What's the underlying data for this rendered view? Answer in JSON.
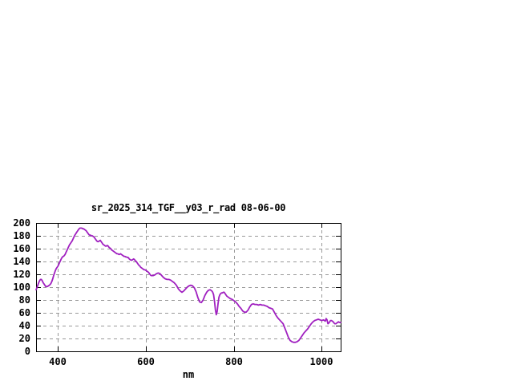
{
  "window": {
    "background": "#ffffff"
  },
  "chart_data": {
    "type": "line",
    "title": "sr_2025_314_TGF__y03_r_rad 08-06-00",
    "xlabel": "nm",
    "ylabel": "",
    "xlim": [
      350,
      1043
    ],
    "ylim": [
      0,
      200
    ],
    "xticks": [
      400,
      600,
      800,
      1000
    ],
    "yticks": [
      0,
      20,
      40,
      60,
      80,
      100,
      120,
      140,
      160,
      180,
      200
    ],
    "grid": true,
    "legend_position": "none",
    "colors": {
      "line": "#a020c0",
      "grid": "#999999",
      "axis": "#000000",
      "text": "#000000",
      "background": "#ffffff"
    },
    "series": [
      {
        "name": "sr_2025_314_TGF__y03_r_rad",
        "color": "#a020c0",
        "points": [
          [
            350,
            96
          ],
          [
            352,
            99
          ],
          [
            354,
            103
          ],
          [
            356,
            107
          ],
          [
            358,
            110
          ],
          [
            360,
            112
          ],
          [
            362,
            112
          ],
          [
            364,
            110
          ],
          [
            366,
            107
          ],
          [
            368,
            105
          ],
          [
            370,
            103
          ],
          [
            372,
            101
          ],
          [
            374,
            101
          ],
          [
            376,
            101
          ],
          [
            378,
            102
          ],
          [
            380,
            103
          ],
          [
            382,
            104
          ],
          [
            384,
            106
          ],
          [
            386,
            109
          ],
          [
            388,
            113
          ],
          [
            390,
            118
          ],
          [
            392,
            122
          ],
          [
            394,
            126
          ],
          [
            396,
            129
          ],
          [
            398,
            131
          ],
          [
            400,
            133
          ],
          [
            402,
            136
          ],
          [
            404,
            139
          ],
          [
            406,
            142
          ],
          [
            408,
            145
          ],
          [
            410,
            147
          ],
          [
            412,
            148
          ],
          [
            414,
            149
          ],
          [
            416,
            151
          ],
          [
            418,
            154
          ],
          [
            420,
            157
          ],
          [
            422,
            160
          ],
          [
            424,
            163
          ],
          [
            426,
            166
          ],
          [
            428,
            168
          ],
          [
            430,
            170
          ],
          [
            432,
            172
          ],
          [
            434,
            175
          ],
          [
            436,
            178
          ],
          [
            438,
            181
          ],
          [
            440,
            183
          ],
          [
            442,
            185
          ],
          [
            444,
            187
          ],
          [
            446,
            189
          ],
          [
            448,
            191
          ],
          [
            450,
            192
          ],
          [
            452,
            192
          ],
          [
            454,
            192
          ],
          [
            456,
            191
          ],
          [
            458,
            191
          ],
          [
            460,
            190
          ],
          [
            462,
            189
          ],
          [
            464,
            188
          ],
          [
            466,
            186
          ],
          [
            468,
            184
          ],
          [
            470,
            182
          ],
          [
            472,
            181
          ],
          [
            474,
            181
          ],
          [
            476,
            180
          ],
          [
            478,
            180
          ],
          [
            480,
            179
          ],
          [
            482,
            178
          ],
          [
            484,
            176
          ],
          [
            486,
            174
          ],
          [
            488,
            172
          ],
          [
            490,
            171
          ],
          [
            492,
            171
          ],
          [
            494,
            172
          ],
          [
            496,
            173
          ],
          [
            498,
            171
          ],
          [
            500,
            169
          ],
          [
            502,
            167
          ],
          [
            504,
            166
          ],
          [
            506,
            165
          ],
          [
            508,
            164
          ],
          [
            510,
            164
          ],
          [
            512,
            165
          ],
          [
            514,
            164
          ],
          [
            516,
            162
          ],
          [
            518,
            161
          ],
          [
            520,
            160
          ],
          [
            522,
            158
          ],
          [
            524,
            157
          ],
          [
            526,
            156
          ],
          [
            528,
            155
          ],
          [
            530,
            154
          ],
          [
            532,
            153
          ],
          [
            534,
            152
          ],
          [
            536,
            152
          ],
          [
            538,
            151
          ],
          [
            540,
            151
          ],
          [
            542,
            152
          ],
          [
            544,
            151
          ],
          [
            546,
            150
          ],
          [
            548,
            149
          ],
          [
            550,
            148
          ],
          [
            552,
            148
          ],
          [
            554,
            147
          ],
          [
            556,
            147
          ],
          [
            558,
            146
          ],
          [
            560,
            146
          ],
          [
            562,
            144
          ],
          [
            564,
            143
          ],
          [
            566,
            142
          ],
          [
            568,
            142
          ],
          [
            570,
            143
          ],
          [
            572,
            144
          ],
          [
            574,
            143
          ],
          [
            576,
            141
          ],
          [
            578,
            140
          ],
          [
            580,
            138
          ],
          [
            582,
            136
          ],
          [
            584,
            134
          ],
          [
            586,
            133
          ],
          [
            588,
            131
          ],
          [
            590,
            130
          ],
          [
            592,
            129
          ],
          [
            594,
            128
          ],
          [
            596,
            127
          ],
          [
            598,
            127
          ],
          [
            600,
            126
          ],
          [
            602,
            125
          ],
          [
            604,
            124
          ],
          [
            606,
            123
          ],
          [
            608,
            121
          ],
          [
            610,
            119
          ],
          [
            612,
            118
          ],
          [
            616,
            118
          ],
          [
            620,
            119
          ],
          [
            624,
            121
          ],
          [
            628,
            122
          ],
          [
            632,
            121
          ],
          [
            636,
            118
          ],
          [
            640,
            115
          ],
          [
            644,
            113
          ],
          [
            648,
            112
          ],
          [
            652,
            112
          ],
          [
            656,
            111
          ],
          [
            660,
            109
          ],
          [
            664,
            107
          ],
          [
            668,
            104
          ],
          [
            670,
            102
          ],
          [
            674,
            97
          ],
          [
            678,
            94
          ],
          [
            682,
            92
          ],
          [
            686,
            94
          ],
          [
            690,
            97
          ],
          [
            694,
            100
          ],
          [
            698,
            102
          ],
          [
            702,
            103
          ],
          [
            706,
            102
          ],
          [
            710,
            99
          ],
          [
            714,
            93
          ],
          [
            718,
            84
          ],
          [
            722,
            77
          ],
          [
            726,
            76
          ],
          [
            730,
            80
          ],
          [
            734,
            87
          ],
          [
            738,
            92
          ],
          [
            742,
            95
          ],
          [
            746,
            96
          ],
          [
            750,
            94
          ],
          [
            752,
            92
          ],
          [
            754,
            88
          ],
          [
            756,
            78
          ],
          [
            758,
            65
          ],
          [
            760,
            57
          ],
          [
            762,
            62
          ],
          [
            764,
            74
          ],
          [
            766,
            84
          ],
          [
            768,
            88
          ],
          [
            770,
            90
          ],
          [
            772,
            91
          ],
          [
            774,
            91
          ],
          [
            776,
            92
          ],
          [
            778,
            92
          ],
          [
            780,
            90
          ],
          [
            784,
            86
          ],
          [
            788,
            84
          ],
          [
            792,
            82
          ],
          [
            796,
            81
          ],
          [
            800,
            79
          ],
          [
            804,
            77
          ],
          [
            808,
            74
          ],
          [
            812,
            70
          ],
          [
            816,
            67
          ],
          [
            820,
            63
          ],
          [
            824,
            61
          ],
          [
            828,
            61
          ],
          [
            832,
            64
          ],
          [
            836,
            69
          ],
          [
            840,
            73
          ],
          [
            844,
            74
          ],
          [
            848,
            73
          ],
          [
            852,
            73
          ],
          [
            856,
            72
          ],
          [
            860,
            73
          ],
          [
            864,
            72
          ],
          [
            868,
            72
          ],
          [
            872,
            71
          ],
          [
            876,
            70
          ],
          [
            880,
            68
          ],
          [
            884,
            67
          ],
          [
            888,
            66
          ],
          [
            892,
            61
          ],
          [
            896,
            56
          ],
          [
            900,
            52
          ],
          [
            904,
            49
          ],
          [
            908,
            46
          ],
          [
            912,
            43
          ],
          [
            916,
            36
          ],
          [
            920,
            29
          ],
          [
            924,
            22
          ],
          [
            928,
            17
          ],
          [
            932,
            15
          ],
          [
            936,
            14
          ],
          [
            940,
            14
          ],
          [
            944,
            15
          ],
          [
            948,
            17
          ],
          [
            952,
            21
          ],
          [
            956,
            25
          ],
          [
            960,
            29
          ],
          [
            964,
            32
          ],
          [
            968,
            35
          ],
          [
            972,
            39
          ],
          [
            976,
            43
          ],
          [
            980,
            46
          ],
          [
            984,
            48
          ],
          [
            988,
            49
          ],
          [
            992,
            50
          ],
          [
            996,
            49
          ],
          [
            1000,
            48
          ],
          [
            1004,
            49
          ],
          [
            1008,
            47
          ],
          [
            1010,
            51
          ],
          [
            1012,
            49
          ],
          [
            1014,
            43
          ],
          [
            1016,
            44
          ],
          [
            1018,
            46
          ],
          [
            1020,
            48
          ],
          [
            1022,
            48
          ],
          [
            1024,
            47
          ],
          [
            1026,
            46
          ],
          [
            1028,
            44
          ],
          [
            1030,
            43
          ],
          [
            1032,
            43
          ],
          [
            1034,
            44
          ],
          [
            1036,
            45
          ],
          [
            1038,
            46
          ],
          [
            1040,
            45
          ],
          [
            1043,
            45
          ]
        ]
      }
    ]
  }
}
